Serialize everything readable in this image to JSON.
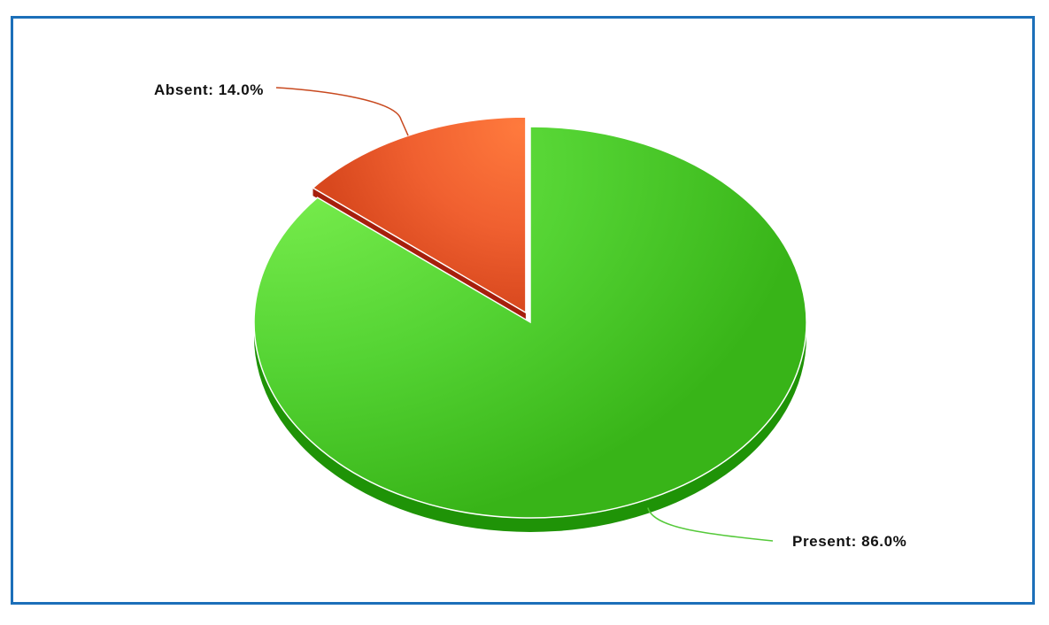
{
  "chart_data": {
    "type": "pie",
    "title": "",
    "style": "3d",
    "start_angle_deg": 0,
    "slices": [
      {
        "name": "Present",
        "value": 86.0,
        "label": "Present: 86.0%",
        "color_light": "#7cf050",
        "color_mid": "#54d333",
        "color_dark": "#38b418",
        "side_color": "#1f9307",
        "leader_color": "#55c93a",
        "exploded": false
      },
      {
        "name": "Absent",
        "value": 14.0,
        "label": "Absent: 14.0%",
        "color_light": "#ff7a3d",
        "color_mid": "#f06030",
        "color_dark": "#d8481e",
        "side_color": "#a61f0d",
        "leader_color": "#c8491f",
        "exploded": true
      }
    ]
  },
  "frame": {
    "border_color": "#1c6fb9"
  }
}
